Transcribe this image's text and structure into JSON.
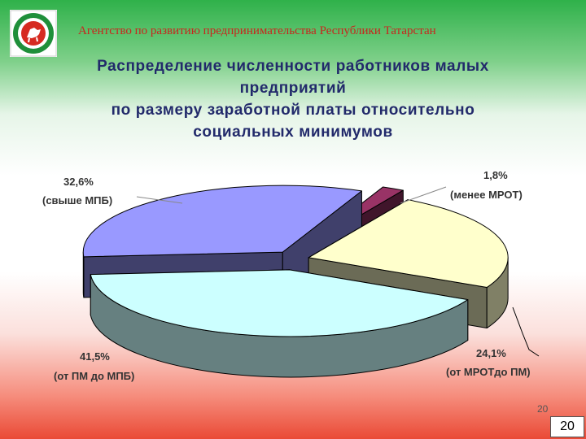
{
  "header": {
    "agency": "Агентство по развитию предпринимательства Республики Татарстан"
  },
  "slide": {
    "title_lines": [
      "Распределение численности работников малых",
      "предприятий",
      "по размеру  заработной платы относительно",
      "социальных минимумов"
    ],
    "page_number": "20",
    "page_number_box": "20"
  },
  "colors": {
    "slice_over_mpb": "#9999ff",
    "slice_below_mrot": "#993366",
    "slice_mrot_pm": "#ffffcc",
    "slice_pm_mpb": "#ccffff"
  },
  "chart_data": {
    "type": "pie",
    "style": "3d-exploded",
    "slices": [
      {
        "value_label": "32,6%",
        "category": "(свыше МПБ)",
        "value": 32.6,
        "color": "#9999ff"
      },
      {
        "value_label": "1,8%",
        "category": "(менее МРОТ)",
        "value": 1.8,
        "color": "#993366"
      },
      {
        "value_label": "24,1%",
        "category": "(от МРОТдо ПМ)",
        "value": 24.1,
        "color": "#ffffcc"
      },
      {
        "value_label": "41,5%",
        "category": "(от ПМ до МПБ)",
        "value": 41.5,
        "color": "#ccffff"
      }
    ]
  }
}
